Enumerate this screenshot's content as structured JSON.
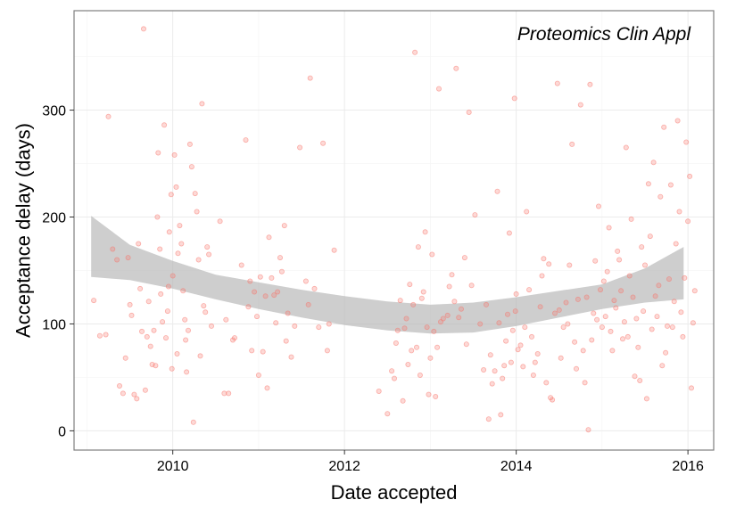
{
  "chart_data": {
    "type": "scatter",
    "title": "",
    "annotation": "Proteomics Clin Appl",
    "xlabel": "Date accepted",
    "ylabel": "Acceptance delay (days)",
    "xlim": [
      2008.85,
      2016.3
    ],
    "ylim": [
      -18,
      393
    ],
    "x_ticks": [
      {
        "value": 2010,
        "label": "2010"
      },
      {
        "value": 2012,
        "label": "2012"
      },
      {
        "value": 2014,
        "label": "2014"
      },
      {
        "value": 2016,
        "label": "2016"
      }
    ],
    "y_ticks": [
      {
        "value": 0,
        "label": "0"
      },
      {
        "value": 100,
        "label": "100"
      },
      {
        "value": 200,
        "label": "200"
      },
      {
        "value": 300,
        "label": "300"
      }
    ],
    "grid": true,
    "point_color": "#f8766d",
    "ribbon_color": "#b3b3b3",
    "smooth_band": {
      "x": [
        2009.05,
        2009.5,
        2010.0,
        2010.5,
        2011.0,
        2011.5,
        2012.0,
        2012.5,
        2013.0,
        2013.5,
        2014.0,
        2014.5,
        2015.0,
        2015.5,
        2015.95
      ],
      "lower": [
        144,
        141,
        133,
        123,
        114,
        106,
        99,
        94,
        91,
        92,
        98,
        106,
        114,
        120,
        123
      ],
      "upper": [
        201,
        174,
        159,
        146,
        139,
        132,
        126,
        121,
        118,
        120,
        125,
        131,
        137,
        152,
        172
      ]
    },
    "points": [
      [
        2009.08,
        122
      ],
      [
        2009.15,
        89
      ],
      [
        2009.22,
        90
      ],
      [
        2009.25,
        294
      ],
      [
        2009.3,
        170
      ],
      [
        2009.35,
        160
      ],
      [
        2009.38,
        42
      ],
      [
        2009.42,
        35
      ],
      [
        2009.45,
        68
      ],
      [
        2009.48,
        162
      ],
      [
        2009.5,
        118
      ],
      [
        2009.52,
        108
      ],
      [
        2009.55,
        34
      ],
      [
        2009.58,
        30
      ],
      [
        2009.6,
        175
      ],
      [
        2009.62,
        133
      ],
      [
        2009.64,
        93
      ],
      [
        2009.66,
        376
      ],
      [
        2009.68,
        38
      ],
      [
        2009.7,
        88
      ],
      [
        2009.72,
        121
      ],
      [
        2009.74,
        79
      ],
      [
        2009.76,
        62
      ],
      [
        2009.78,
        94
      ],
      [
        2009.8,
        61
      ],
      [
        2009.82,
        200
      ],
      [
        2009.83,
        260
      ],
      [
        2009.85,
        170
      ],
      [
        2009.86,
        128
      ],
      [
        2009.88,
        102
      ],
      [
        2009.9,
        286
      ],
      [
        2009.92,
        87
      ],
      [
        2009.94,
        112
      ],
      [
        2009.96,
        186
      ],
      [
        2009.98,
        221
      ],
      [
        2010.0,
        145
      ],
      [
        2010.02,
        258
      ],
      [
        2010.04,
        228
      ],
      [
        2010.06,
        166
      ],
      [
        2010.08,
        192
      ],
      [
        2010.1,
        175
      ],
      [
        2010.12,
        131
      ],
      [
        2010.14,
        104
      ],
      [
        2010.16,
        55
      ],
      [
        2010.18,
        94
      ],
      [
        2010.2,
        268
      ],
      [
        2010.22,
        247
      ],
      [
        2010.24,
        8
      ],
      [
        2010.26,
        222
      ],
      [
        2010.28,
        205
      ],
      [
        2010.3,
        160
      ],
      [
        2010.32,
        70
      ],
      [
        2010.34,
        306
      ],
      [
        2010.36,
        117
      ],
      [
        2010.38,
        111
      ],
      [
        2010.4,
        172
      ],
      [
        2010.42,
        165
      ],
      [
        2010.45,
        98
      ],
      [
        2009.95,
        135
      ],
      [
        2009.99,
        58
      ],
      [
        2010.05,
        72
      ],
      [
        2010.15,
        85
      ],
      [
        2010.55,
        196
      ],
      [
        2010.6,
        35
      ],
      [
        2010.62,
        104
      ],
      [
        2010.65,
        35
      ],
      [
        2010.7,
        85
      ],
      [
        2010.72,
        87
      ],
      [
        2010.8,
        155
      ],
      [
        2010.85,
        272
      ],
      [
        2010.88,
        116
      ],
      [
        2010.9,
        140
      ],
      [
        2010.92,
        75
      ],
      [
        2010.95,
        130
      ],
      [
        2010.98,
        107
      ],
      [
        2011.0,
        52
      ],
      [
        2011.02,
        144
      ],
      [
        2011.05,
        74
      ],
      [
        2011.08,
        126
      ],
      [
        2011.1,
        40
      ],
      [
        2011.12,
        181
      ],
      [
        2011.15,
        143
      ],
      [
        2011.18,
        127
      ],
      [
        2011.2,
        101
      ],
      [
        2011.22,
        130
      ],
      [
        2011.25,
        162
      ],
      [
        2011.27,
        149
      ],
      [
        2011.3,
        192
      ],
      [
        2011.32,
        84
      ],
      [
        2011.34,
        110
      ],
      [
        2011.38,
        69
      ],
      [
        2011.42,
        98
      ],
      [
        2011.48,
        265
      ],
      [
        2011.55,
        140
      ],
      [
        2011.58,
        118
      ],
      [
        2011.6,
        330
      ],
      [
        2011.65,
        133
      ],
      [
        2011.7,
        97
      ],
      [
        2011.75,
        269
      ],
      [
        2011.8,
        75
      ],
      [
        2011.82,
        100
      ],
      [
        2011.88,
        169
      ],
      [
        2012.4,
        37
      ],
      [
        2012.5,
        16
      ],
      [
        2012.55,
        56
      ],
      [
        2012.58,
        49
      ],
      [
        2012.6,
        82
      ],
      [
        2012.62,
        94
      ],
      [
        2012.65,
        122
      ],
      [
        2012.68,
        28
      ],
      [
        2012.7,
        96
      ],
      [
        2012.72,
        105
      ],
      [
        2012.74,
        62
      ],
      [
        2012.76,
        137
      ],
      [
        2012.78,
        75
      ],
      [
        2012.8,
        118
      ],
      [
        2012.82,
        354
      ],
      [
        2012.84,
        78
      ],
      [
        2012.86,
        172
      ],
      [
        2012.88,
        52
      ],
      [
        2012.9,
        124
      ],
      [
        2012.92,
        130
      ],
      [
        2012.94,
        186
      ],
      [
        2012.96,
        97
      ],
      [
        2012.98,
        34
      ],
      [
        2013.0,
        68
      ],
      [
        2013.02,
        165
      ],
      [
        2013.04,
        93
      ],
      [
        2013.06,
        32
      ],
      [
        2013.08,
        78
      ],
      [
        2013.1,
        320
      ],
      [
        2013.12,
        102
      ],
      [
        2013.15,
        105
      ],
      [
        2013.2,
        108
      ],
      [
        2013.22,
        135
      ],
      [
        2013.25,
        146
      ],
      [
        2013.28,
        121
      ],
      [
        2013.3,
        339
      ],
      [
        2013.33,
        106
      ],
      [
        2013.36,
        114
      ],
      [
        2013.4,
        162
      ],
      [
        2013.42,
        81
      ],
      [
        2013.45,
        298
      ],
      [
        2013.48,
        136
      ],
      [
        2013.52,
        202
      ],
      [
        2013.58,
        100
      ],
      [
        2013.62,
        57
      ],
      [
        2013.65,
        118
      ],
      [
        2013.68,
        11
      ],
      [
        2013.7,
        71
      ],
      [
        2013.72,
        44
      ],
      [
        2013.75,
        56
      ],
      [
        2013.78,
        224
      ],
      [
        2013.8,
        101
      ],
      [
        2013.82,
        15
      ],
      [
        2013.84,
        49
      ],
      [
        2013.86,
        61
      ],
      [
        2013.88,
        84
      ],
      [
        2013.9,
        109
      ],
      [
        2013.92,
        185
      ],
      [
        2013.94,
        64
      ],
      [
        2013.96,
        94
      ],
      [
        2013.98,
        311
      ],
      [
        2013.99,
        112
      ],
      [
        2014.0,
        128
      ],
      [
        2014.02,
        76
      ],
      [
        2014.05,
        80
      ],
      [
        2014.08,
        60
      ],
      [
        2014.1,
        97
      ],
      [
        2014.12,
        205
      ],
      [
        2014.15,
        132
      ],
      [
        2014.18,
        88
      ],
      [
        2014.2,
        52
      ],
      [
        2014.22,
        64
      ],
      [
        2014.25,
        72
      ],
      [
        2014.28,
        116
      ],
      [
        2014.3,
        145
      ],
      [
        2014.32,
        161
      ],
      [
        2014.35,
        45
      ],
      [
        2014.38,
        156
      ],
      [
        2014.4,
        31
      ],
      [
        2014.42,
        29
      ],
      [
        2014.45,
        110
      ],
      [
        2014.48,
        325
      ],
      [
        2014.5,
        113
      ],
      [
        2014.52,
        68
      ],
      [
        2014.55,
        97
      ],
      [
        2014.58,
        120
      ],
      [
        2014.6,
        100
      ],
      [
        2014.62,
        155
      ],
      [
        2014.65,
        268
      ],
      [
        2014.68,
        83
      ],
      [
        2014.7,
        58
      ],
      [
        2014.72,
        123
      ],
      [
        2014.75,
        305
      ],
      [
        2014.78,
        75
      ],
      [
        2014.8,
        45
      ],
      [
        2014.82,
        125
      ],
      [
        2014.84,
        1
      ],
      [
        2014.86,
        324
      ],
      [
        2014.88,
        85
      ],
      [
        2014.9,
        110
      ],
      [
        2014.92,
        159
      ],
      [
        2014.94,
        104
      ],
      [
        2014.96,
        210
      ],
      [
        2014.98,
        132
      ],
      [
        2015.0,
        97
      ],
      [
        2015.02,
        140
      ],
      [
        2015.04,
        107
      ],
      [
        2015.06,
        149
      ],
      [
        2015.08,
        190
      ],
      [
        2015.1,
        93
      ],
      [
        2015.12,
        75
      ],
      [
        2015.14,
        122
      ],
      [
        2015.16,
        115
      ],
      [
        2015.18,
        168
      ],
      [
        2015.2,
        160
      ],
      [
        2015.22,
        131
      ],
      [
        2015.24,
        86
      ],
      [
        2015.26,
        102
      ],
      [
        2015.28,
        265
      ],
      [
        2015.3,
        88
      ],
      [
        2015.32,
        145
      ],
      [
        2015.34,
        198
      ],
      [
        2015.36,
        125
      ],
      [
        2015.38,
        51
      ],
      [
        2015.4,
        105
      ],
      [
        2015.42,
        78
      ],
      [
        2015.44,
        47
      ],
      [
        2015.46,
        172
      ],
      [
        2015.48,
        112
      ],
      [
        2015.5,
        155
      ],
      [
        2015.52,
        30
      ],
      [
        2015.54,
        231
      ],
      [
        2015.56,
        182
      ],
      [
        2015.58,
        95
      ],
      [
        2015.6,
        251
      ],
      [
        2015.62,
        126
      ],
      [
        2015.64,
        107
      ],
      [
        2015.66,
        136
      ],
      [
        2015.68,
        219
      ],
      [
        2015.7,
        61
      ],
      [
        2015.72,
        284
      ],
      [
        2015.74,
        73
      ],
      [
        2015.76,
        98
      ],
      [
        2015.78,
        142
      ],
      [
        2015.8,
        230
      ],
      [
        2015.82,
        97
      ],
      [
        2015.84,
        121
      ],
      [
        2015.86,
        175
      ],
      [
        2015.88,
        290
      ],
      [
        2015.9,
        205
      ],
      [
        2015.92,
        111
      ],
      [
        2015.94,
        88
      ],
      [
        2015.96,
        143
      ],
      [
        2015.98,
        270
      ],
      [
        2016.0,
        196
      ],
      [
        2016.02,
        238
      ],
      [
        2016.04,
        40
      ],
      [
        2016.06,
        101
      ],
      [
        2016.08,
        131
      ]
    ]
  }
}
